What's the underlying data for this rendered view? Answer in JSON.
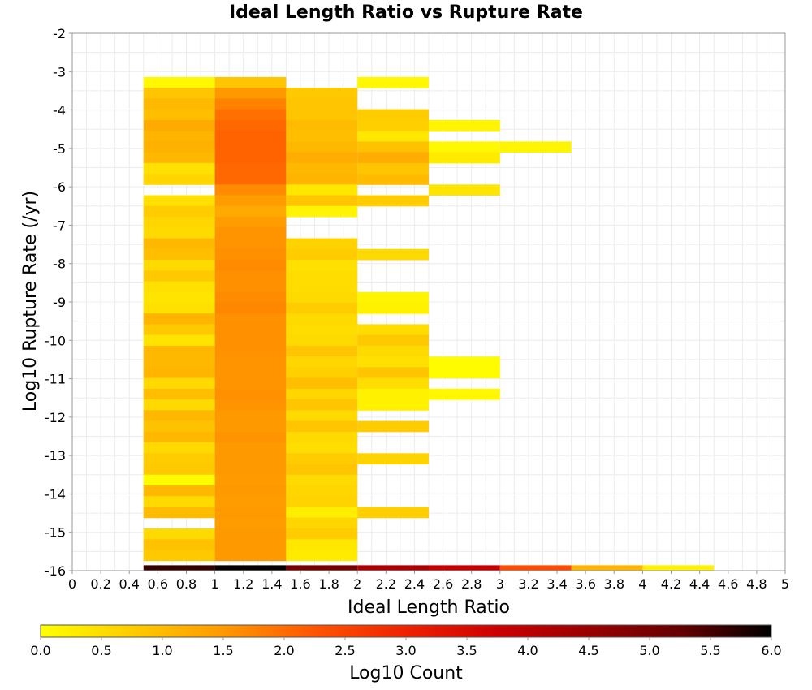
{
  "chart_data": {
    "type": "heatmap",
    "title": "Ideal Length Ratio vs Rupture Rate",
    "xlabel": "Ideal Length Ratio",
    "ylabel": "Log10 Rupture Rate (/yr)",
    "xlim": [
      0,
      5
    ],
    "ylim": [
      -16,
      -2
    ],
    "x_ticks": [
      "0",
      "0.2",
      "0.4",
      "0.6",
      "0.8",
      "1",
      "1.2",
      "1.4",
      "1.6",
      "1.8",
      "2",
      "2.2",
      "2.4",
      "2.6",
      "2.8",
      "3",
      "3.2",
      "3.4",
      "3.6",
      "3.8",
      "4",
      "4.2",
      "4.4",
      "4.6",
      "4.8",
      "5"
    ],
    "y_ticks": [
      "-2",
      "-3",
      "-4",
      "-5",
      "-6",
      "-7",
      "-8",
      "-9",
      "-10",
      "-11",
      "-12",
      "-13",
      "-14",
      "-15",
      "-16"
    ],
    "grid": true,
    "colorbar": {
      "label": "Log10 Count",
      "min": 0.0,
      "max": 6.0,
      "ticks": [
        "0.0",
        "0.5",
        "1.0",
        "1.5",
        "2.0",
        "2.5",
        "3.0",
        "3.5",
        "4.0",
        "4.5",
        "5.0",
        "5.5",
        "6.0"
      ],
      "colormap": [
        "#ffff00",
        "#ffcc00",
        "#ff9900",
        "#ff5500",
        "#ee2200",
        "#cc0000",
        "#990000",
        "#660000",
        "#000000"
      ]
    },
    "x_bin_width": 0.5,
    "y_bin_width": 0.28,
    "columns": [
      {
        "x_start": 0.5,
        "bins": [
          {
            "y": -3.42,
            "v": 0.1
          },
          {
            "y": -3.7,
            "v": 0.85
          },
          {
            "y": -3.98,
            "v": 1.05
          },
          {
            "y": -4.26,
            "v": 0.95
          },
          {
            "y": -4.54,
            "v": 1.25
          },
          {
            "y": -4.82,
            "v": 1.1
          },
          {
            "y": -5.1,
            "v": 1.15
          },
          {
            "y": -5.38,
            "v": 1.05
          },
          {
            "y": -5.66,
            "v": 0.45
          },
          {
            "y": -5.94,
            "v": 0.6
          },
          {
            "y": -6.5,
            "v": 0.45
          },
          {
            "y": -6.78,
            "v": 0.75
          },
          {
            "y": -7.06,
            "v": 0.6
          },
          {
            "y": -7.34,
            "v": 0.55
          },
          {
            "y": -7.62,
            "v": 1.05
          },
          {
            "y": -7.9,
            "v": 0.95
          },
          {
            "y": -8.18,
            "v": 0.55
          },
          {
            "y": -8.46,
            "v": 0.8
          },
          {
            "y": -8.74,
            "v": 0.45
          },
          {
            "y": -9.02,
            "v": 0.4
          },
          {
            "y": -9.3,
            "v": 0.45
          },
          {
            "y": -9.58,
            "v": 1.1
          },
          {
            "y": -9.86,
            "v": 0.8
          },
          {
            "y": -10.14,
            "v": 0.4
          },
          {
            "y": -10.42,
            "v": 1.05
          },
          {
            "y": -10.7,
            "v": 1.05
          },
          {
            "y": -10.98,
            "v": 1.1
          },
          {
            "y": -11.26,
            "v": 0.55
          },
          {
            "y": -11.54,
            "v": 0.95
          },
          {
            "y": -11.82,
            "v": 0.55
          },
          {
            "y": -12.1,
            "v": 1.05
          },
          {
            "y": -12.38,
            "v": 0.9
          },
          {
            "y": -12.66,
            "v": 1.05
          },
          {
            "y": -12.94,
            "v": 0.55
          },
          {
            "y": -13.22,
            "v": 0.75
          },
          {
            "y": -13.5,
            "v": 0.8
          },
          {
            "y": -13.78,
            "v": 0.05
          },
          {
            "y": -14.06,
            "v": 1.05
          },
          {
            "y": -14.34,
            "v": 0.55
          },
          {
            "y": -14.62,
            "v": 1.0
          },
          {
            "y": -15.18,
            "v": 0.55
          },
          {
            "y": -15.46,
            "v": 0.9
          },
          {
            "y": -15.74,
            "v": 0.8
          },
          {
            "y": -16.0,
            "v": 5.6,
            "h": 0.14
          }
        ]
      },
      {
        "x_start": 1.0,
        "bins": [
          {
            "y": -3.42,
            "v": 0.85
          },
          {
            "y": -3.7,
            "v": 1.5
          },
          {
            "y": -3.98,
            "v": 1.75
          },
          {
            "y": -4.26,
            "v": 1.95
          },
          {
            "y": -4.54,
            "v": 2.05
          },
          {
            "y": -4.82,
            "v": 2.1
          },
          {
            "y": -5.1,
            "v": 2.1
          },
          {
            "y": -5.38,
            "v": 2.1
          },
          {
            "y": -5.66,
            "v": 2.05
          },
          {
            "y": -5.94,
            "v": 2.05
          },
          {
            "y": -6.22,
            "v": 1.65
          },
          {
            "y": -6.5,
            "v": 1.45
          },
          {
            "y": -6.78,
            "v": 1.25
          },
          {
            "y": -7.06,
            "v": 1.45
          },
          {
            "y": -7.34,
            "v": 1.55
          },
          {
            "y": -7.62,
            "v": 1.55
          },
          {
            "y": -7.9,
            "v": 1.6
          },
          {
            "y": -8.18,
            "v": 1.65
          },
          {
            "y": -8.46,
            "v": 1.6
          },
          {
            "y": -8.74,
            "v": 1.6
          },
          {
            "y": -9.02,
            "v": 1.65
          },
          {
            "y": -9.3,
            "v": 1.7
          },
          {
            "y": -9.58,
            "v": 1.6
          },
          {
            "y": -9.86,
            "v": 1.6
          },
          {
            "y": -10.14,
            "v": 1.6
          },
          {
            "y": -10.42,
            "v": 1.6
          },
          {
            "y": -10.7,
            "v": 1.55
          },
          {
            "y": -10.98,
            "v": 1.55
          },
          {
            "y": -11.26,
            "v": 1.55
          },
          {
            "y": -11.54,
            "v": 1.6
          },
          {
            "y": -11.82,
            "v": 1.55
          },
          {
            "y": -12.1,
            "v": 1.5
          },
          {
            "y": -12.38,
            "v": 1.5
          },
          {
            "y": -12.66,
            "v": 1.55
          },
          {
            "y": -12.94,
            "v": 1.5
          },
          {
            "y": -13.22,
            "v": 1.5
          },
          {
            "y": -13.5,
            "v": 1.5
          },
          {
            "y": -13.78,
            "v": 1.45
          },
          {
            "y": -14.06,
            "v": 1.5
          },
          {
            "y": -14.34,
            "v": 1.45
          },
          {
            "y": -14.62,
            "v": 1.5
          },
          {
            "y": -14.9,
            "v": 1.45
          },
          {
            "y": -15.18,
            "v": 1.5
          },
          {
            "y": -15.46,
            "v": 1.5
          },
          {
            "y": -15.74,
            "v": 1.5
          },
          {
            "y": -16.0,
            "v": 5.95,
            "h": 0.14
          }
        ]
      },
      {
        "x_start": 1.5,
        "bins": [
          {
            "y": -3.7,
            "v": 0.8
          },
          {
            "y": -3.98,
            "v": 0.85
          },
          {
            "y": -4.26,
            "v": 0.85
          },
          {
            "y": -4.54,
            "v": 1.0
          },
          {
            "y": -4.82,
            "v": 0.95
          },
          {
            "y": -5.1,
            "v": 1.05
          },
          {
            "y": -5.38,
            "v": 1.2
          },
          {
            "y": -5.66,
            "v": 1.05
          },
          {
            "y": -5.94,
            "v": 1.1
          },
          {
            "y": -6.22,
            "v": 0.35
          },
          {
            "y": -6.5,
            "v": 0.85
          },
          {
            "y": -6.78,
            "v": 0.15
          },
          {
            "y": -7.62,
            "v": 0.65
          },
          {
            "y": -7.9,
            "v": 0.75
          },
          {
            "y": -8.18,
            "v": 0.45
          },
          {
            "y": -8.46,
            "v": 0.5
          },
          {
            "y": -8.74,
            "v": 0.5
          },
          {
            "y": -9.02,
            "v": 0.55
          },
          {
            "y": -9.3,
            "v": 0.75
          },
          {
            "y": -9.58,
            "v": 0.55
          },
          {
            "y": -9.86,
            "v": 0.5
          },
          {
            "y": -10.14,
            "v": 0.55
          },
          {
            "y": -10.42,
            "v": 0.85
          },
          {
            "y": -10.7,
            "v": 0.6
          },
          {
            "y": -10.98,
            "v": 0.7
          },
          {
            "y": -11.26,
            "v": 0.95
          },
          {
            "y": -11.54,
            "v": 0.6
          },
          {
            "y": -11.82,
            "v": 0.85
          },
          {
            "y": -12.1,
            "v": 0.55
          },
          {
            "y": -12.38,
            "v": 0.85
          },
          {
            "y": -12.66,
            "v": 0.55
          },
          {
            "y": -12.94,
            "v": 0.5
          },
          {
            "y": -13.22,
            "v": 0.75
          },
          {
            "y": -13.5,
            "v": 0.85
          },
          {
            "y": -13.78,
            "v": 0.55
          },
          {
            "y": -14.06,
            "v": 0.6
          },
          {
            "y": -14.34,
            "v": 0.65
          },
          {
            "y": -14.62,
            "v": 0.25
          },
          {
            "y": -14.9,
            "v": 0.6
          },
          {
            "y": -15.18,
            "v": 0.75
          },
          {
            "y": -15.46,
            "v": 0.35
          },
          {
            "y": -15.74,
            "v": 0.3
          },
          {
            "y": -16.0,
            "v": 5.0,
            "h": 0.14
          }
        ]
      },
      {
        "x_start": 2.0,
        "bins": [
          {
            "y": -3.42,
            "v": 0.1
          },
          {
            "y": -4.26,
            "v": 0.75
          },
          {
            "y": -4.54,
            "v": 0.7
          },
          {
            "y": -4.82,
            "v": 0.35
          },
          {
            "y": -5.1,
            "v": 0.9
          },
          {
            "y": -5.38,
            "v": 1.2
          },
          {
            "y": -5.66,
            "v": 0.85
          },
          {
            "y": -5.94,
            "v": 1.0
          },
          {
            "y": -6.5,
            "v": 0.75
          },
          {
            "y": -7.9,
            "v": 0.55
          },
          {
            "y": -9.02,
            "v": 0.15
          },
          {
            "y": -9.3,
            "v": 0.2
          },
          {
            "y": -9.86,
            "v": 0.5
          },
          {
            "y": -10.14,
            "v": 0.8
          },
          {
            "y": -10.42,
            "v": 0.55
          },
          {
            "y": -10.7,
            "v": 0.45
          },
          {
            "y": -10.98,
            "v": 0.85
          },
          {
            "y": -11.26,
            "v": 0.5
          },
          {
            "y": -11.54,
            "v": 0.2
          },
          {
            "y": -11.82,
            "v": 0.2
          },
          {
            "y": -12.38,
            "v": 0.75
          },
          {
            "y": -13.22,
            "v": 0.65
          },
          {
            "y": -14.62,
            "v": 0.7
          },
          {
            "y": -16.0,
            "v": 4.2,
            "h": 0.14
          }
        ]
      },
      {
        "x_start": 2.5,
        "bins": [
          {
            "y": -4.54,
            "v": 0.15
          },
          {
            "y": -5.1,
            "v": 0.1
          },
          {
            "y": -5.38,
            "v": 0.3
          },
          {
            "y": -6.22,
            "v": 0.4
          },
          {
            "y": -10.7,
            "v": 0.05
          },
          {
            "y": -10.98,
            "v": 0.05
          },
          {
            "y": -11.54,
            "v": 0.1
          },
          {
            "y": -16.0,
            "v": 3.8,
            "h": 0.14
          }
        ]
      },
      {
        "x_start": 3.0,
        "bins": [
          {
            "y": -5.1,
            "v": 0.15
          },
          {
            "y": -16.0,
            "v": 2.4,
            "h": 0.14
          }
        ]
      },
      {
        "x_start": 3.5,
        "bins": [
          {
            "y": -16.0,
            "v": 1.1,
            "h": 0.14
          }
        ]
      },
      {
        "x_start": 4.0,
        "bins": [
          {
            "y": -16.0,
            "v": 0.2,
            "h": 0.14
          }
        ]
      }
    ]
  }
}
